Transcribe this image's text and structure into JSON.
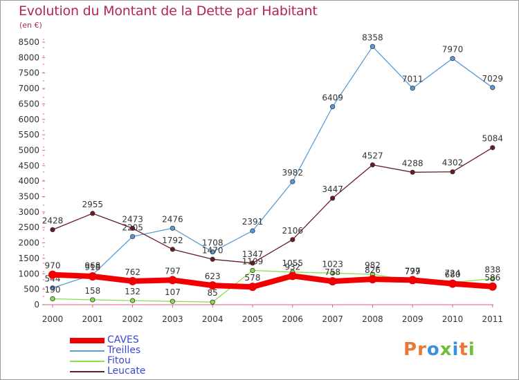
{
  "title": "Evolution du Montant de la Dette par Habitant",
  "unit": "(en €)",
  "logo_text": "Proxiti",
  "chart_data": {
    "type": "line",
    "categories": [
      "2000",
      "2001",
      "2002",
      "2003",
      "2004",
      "2005",
      "2006",
      "2007",
      "2008",
      "2009",
      "2010",
      "2011"
    ],
    "ylim": [
      0,
      8500
    ],
    "yticks": [
      0,
      500,
      1000,
      1500,
      2000,
      2500,
      3000,
      3500,
      4000,
      4500,
      5000,
      5500,
      6000,
      6500,
      7000,
      7500,
      8000,
      8500
    ],
    "grid": false,
    "legend_position": "bottom-left",
    "series": [
      {
        "name": "CAVES",
        "color": "#f00000",
        "values": [
          970,
          918,
          762,
          797,
          623,
          578,
          932,
          758,
          826,
          797,
          680,
          586
        ]
      },
      {
        "name": "Treilles",
        "color": "#5b9bd5",
        "values": [
          544,
          968,
          2205,
          2476,
          1708,
          2391,
          3982,
          6409,
          8358,
          7011,
          7970,
          7029
        ]
      },
      {
        "name": "Fitou",
        "color": "#88e04e",
        "values": [
          190,
          158,
          132,
          107,
          85,
          1109,
          1055,
          1023,
          982,
          779,
          724,
          838
        ]
      },
      {
        "name": "Leucate",
        "color": "#6b1a24",
        "values": [
          2428,
          2955,
          2473,
          1792,
          1470,
          1347,
          2106,
          3447,
          4527,
          4288,
          4302,
          5084
        ]
      }
    ]
  }
}
